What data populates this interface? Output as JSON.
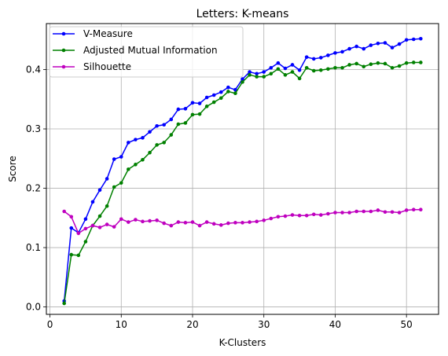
{
  "chart_data": {
    "type": "line",
    "title": "Letters: K-means",
    "xlabel": "K-Clusters",
    "ylabel": "Score",
    "xlim": [
      -0.5,
      54.5
    ],
    "ylim": [
      -0.0125,
      0.4775
    ],
    "xticks": [
      0,
      10,
      20,
      30,
      40,
      50
    ],
    "yticks": [
      0.0,
      0.1,
      0.2,
      0.3,
      0.4
    ],
    "xtick_labels": [
      "0",
      "10",
      "20",
      "30",
      "40",
      "50"
    ],
    "ytick_labels": [
      "0.0",
      "0.1",
      "0.2",
      "0.3",
      "0.4"
    ],
    "grid": true,
    "legend_position": "top-left",
    "x": [
      2,
      3,
      4,
      5,
      6,
      7,
      8,
      9,
      10,
      11,
      12,
      13,
      14,
      15,
      16,
      17,
      18,
      19,
      20,
      21,
      22,
      23,
      24,
      25,
      26,
      27,
      28,
      29,
      30,
      31,
      32,
      33,
      34,
      35,
      36,
      37,
      38,
      39,
      40,
      41,
      42,
      43,
      44,
      45,
      46,
      47,
      48,
      49,
      50,
      51,
      52
    ],
    "series": [
      {
        "name": "V-Measure",
        "color": "#0000ff",
        "values": [
          0.01,
          0.133,
          0.125,
          0.148,
          0.177,
          0.197,
          0.216,
          0.249,
          0.253,
          0.277,
          0.282,
          0.285,
          0.295,
          0.305,
          0.307,
          0.316,
          0.333,
          0.334,
          0.344,
          0.343,
          0.353,
          0.357,
          0.362,
          0.37,
          0.366,
          0.384,
          0.396,
          0.393,
          0.396,
          0.403,
          0.411,
          0.402,
          0.408,
          0.399,
          0.421,
          0.418,
          0.42,
          0.424,
          0.428,
          0.43,
          0.435,
          0.439,
          0.435,
          0.441,
          0.444,
          0.445,
          0.437,
          0.443,
          0.45,
          0.451,
          0.452
        ]
      },
      {
        "name": "Adjusted Mutual Information",
        "color": "#008000",
        "values": [
          0.006,
          0.088,
          0.087,
          0.11,
          0.137,
          0.153,
          0.17,
          0.202,
          0.209,
          0.232,
          0.24,
          0.248,
          0.26,
          0.273,
          0.277,
          0.29,
          0.308,
          0.31,
          0.324,
          0.325,
          0.338,
          0.345,
          0.352,
          0.363,
          0.36,
          0.379,
          0.391,
          0.388,
          0.388,
          0.393,
          0.401,
          0.391,
          0.396,
          0.385,
          0.403,
          0.398,
          0.399,
          0.401,
          0.403,
          0.403,
          0.408,
          0.41,
          0.405,
          0.409,
          0.411,
          0.41,
          0.403,
          0.406,
          0.411,
          0.412,
          0.412
        ]
      },
      {
        "name": "Silhouette",
        "color": "#bf00bf",
        "values": [
          0.161,
          0.152,
          0.124,
          0.132,
          0.137,
          0.134,
          0.139,
          0.135,
          0.148,
          0.143,
          0.147,
          0.144,
          0.145,
          0.146,
          0.141,
          0.137,
          0.143,
          0.142,
          0.143,
          0.137,
          0.143,
          0.14,
          0.138,
          0.141,
          0.142,
          0.142,
          0.143,
          0.144,
          0.146,
          0.149,
          0.152,
          0.153,
          0.155,
          0.154,
          0.154,
          0.156,
          0.155,
          0.157,
          0.159,
          0.159,
          0.159,
          0.161,
          0.161,
          0.161,
          0.163,
          0.16,
          0.16,
          0.159,
          0.163,
          0.164,
          0.164
        ]
      }
    ]
  }
}
